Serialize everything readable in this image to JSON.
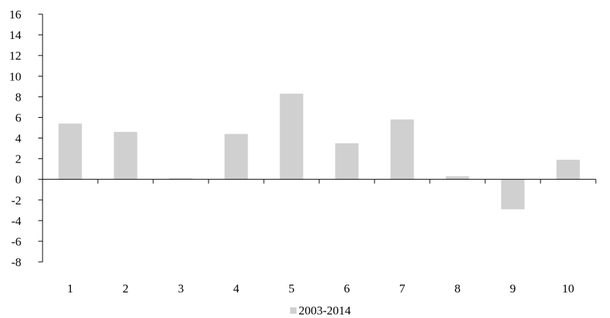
{
  "chart_data": {
    "type": "bar",
    "title": "",
    "xlabel": "",
    "ylabel": "",
    "categories": [
      "1",
      "2",
      "3",
      "4",
      "5",
      "6",
      "7",
      "8",
      "9",
      "10"
    ],
    "series": [
      {
        "name": "2003-2014",
        "values": [
          5.4,
          4.6,
          0.1,
          4.4,
          8.3,
          3.5,
          5.8,
          0.3,
          -2.9,
          1.9
        ],
        "color": "#d0d0d0"
      }
    ],
    "ylim": [
      -8,
      16
    ],
    "yticks": [
      "16",
      "14",
      "12",
      "10",
      "8",
      "6",
      "4",
      "2",
      "0",
      "-2",
      "-4",
      "-6",
      "-8"
    ],
    "grid": false,
    "legend_position": "bottom-center"
  }
}
